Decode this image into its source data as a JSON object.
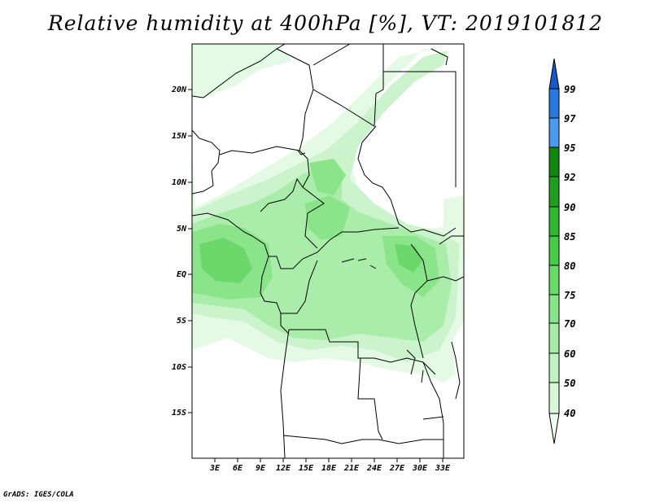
{
  "title": "Relative humidity at 400hPa [%], VT: 2019101812",
  "credit": "GrADS: IGES/COLA",
  "lat_labels": [
    "20N",
    "15N",
    "10N",
    "5N",
    "EQ",
    "5S",
    "10S",
    "15S"
  ],
  "lon_labels": [
    "3E",
    "6E",
    "9E",
    "12E",
    "15E",
    "18E",
    "21E",
    "24E",
    "27E",
    "30E",
    "33E"
  ],
  "colorbar": {
    "labels": [
      "40",
      "50",
      "60",
      "70",
      "75",
      "80",
      "85",
      "90",
      "92",
      "95",
      "97",
      "99"
    ],
    "colors": [
      "#f0fff0",
      "#d8f8d8",
      "#c0f2c0",
      "#a6eca6",
      "#88e488",
      "#68da68",
      "#48cc48",
      "#30b830",
      "#1ea01e",
      "#108810",
      "#4a9af0",
      "#2878e0",
      "#1658c8"
    ]
  },
  "shading_colors": {
    "c40": "#e4fae4",
    "c50": "#ccf4cc",
    "c60": "#aaedaa",
    "c70": "#8ae48a",
    "c75": "#6cd86c"
  }
}
